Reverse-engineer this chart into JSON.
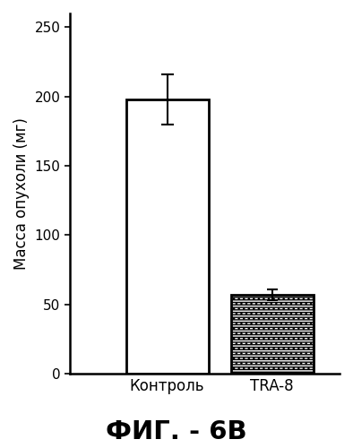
{
  "categories": [
    "Контроль",
    "TRA-8"
  ],
  "values": [
    198,
    57
  ],
  "errors": [
    18,
    4
  ],
  "ylabel": "Масса опухоли (мг)",
  "ylim": [
    0,
    260
  ],
  "yticks": [
    0,
    50,
    100,
    150,
    200,
    250
  ],
  "figure_title": "ФИГ. - 6В",
  "background_color": "#ffffff",
  "bar_width": 0.55,
  "title_fontsize": 21,
  "ylabel_fontsize": 12,
  "tick_fontsize": 11,
  "xtick_fontsize": 12,
  "bar_positions": [
    0.55,
    1.25
  ]
}
